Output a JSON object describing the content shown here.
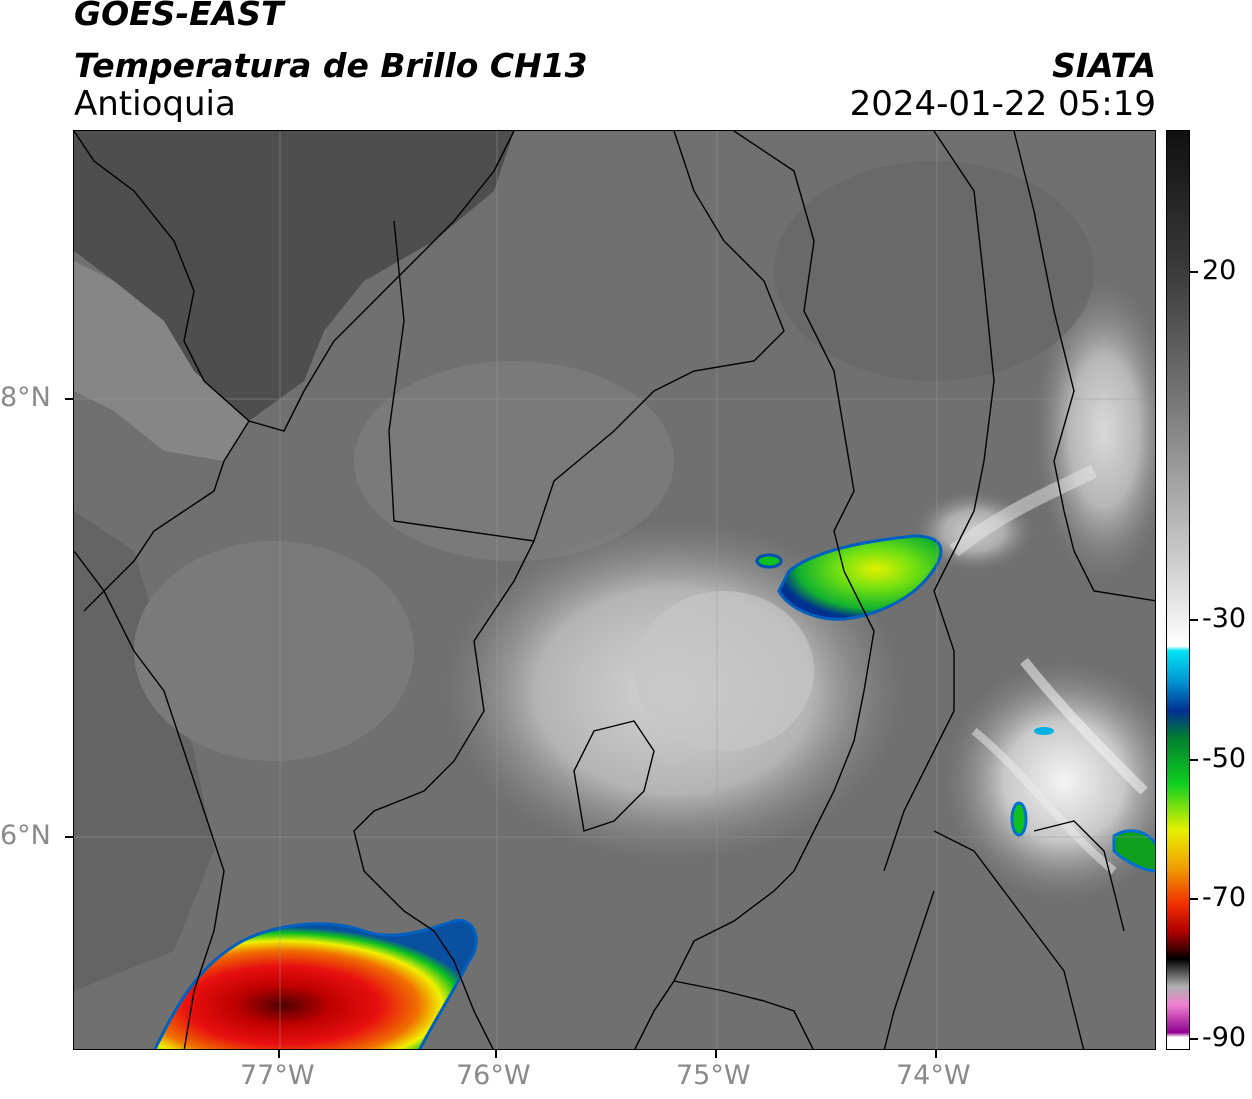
{
  "header": {
    "satellite": "GOES-EAST",
    "product": "Temperatura de Brillo CH13",
    "region": "Antioquia",
    "organization": "SIATA",
    "timestamp": "2024-01-22 05:19"
  },
  "map": {
    "latitude_labels": [
      "8°N",
      "6°N"
    ],
    "longitude_labels": [
      "77°W",
      "76°W",
      "75°W",
      "74°W"
    ]
  },
  "colorbar": {
    "tick_labels": [
      "20",
      "-30",
      "-50",
      "-70",
      "-90"
    ],
    "colors": {
      "warm_gray_top": "#111111",
      "gray_mid": "#9a9a9a",
      "white": "#ffffff",
      "cyan": "#00e0f0",
      "blue": "#003090",
      "green": "#10c020",
      "yellow": "#f0f000",
      "orange": "#f08000",
      "red": "#e00000",
      "dark_red": "#500000",
      "black": "#000000",
      "pink": "#e060c0",
      "purple": "#8a1a8a"
    }
  }
}
